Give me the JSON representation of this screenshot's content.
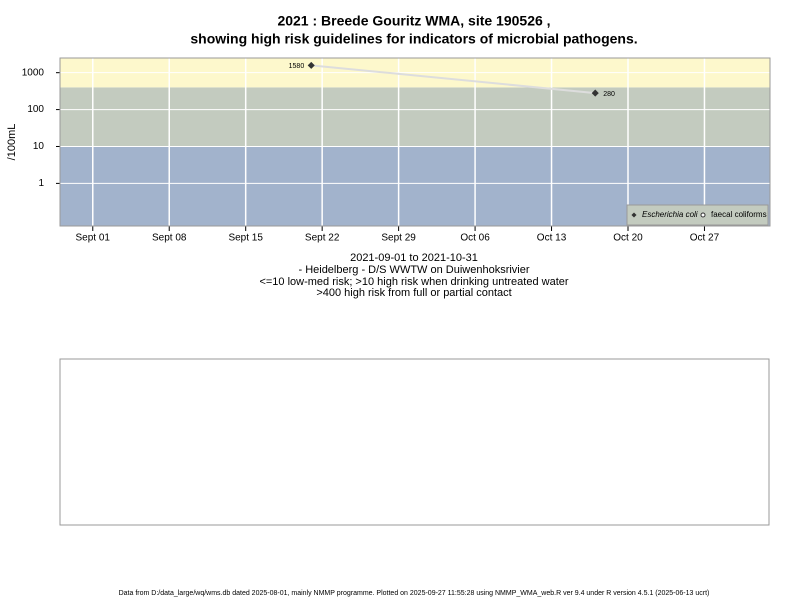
{
  "chart_data": {
    "type": "line",
    "title": [
      "2021 : Breede Gouritz WMA, site 190526 ,",
      "showing high risk guidelines for indicators of microbial pathogens."
    ],
    "y_label": "/100mL",
    "subtitle": [
      "2021-09-01 to 2021-10-31",
      "- Heidelberg - D/S WWTW on Duiwenhoksrivier",
      "<=10 low-med risk; >10 high risk when drinking untreated water",
      ">400 high risk from full or partial contact"
    ],
    "x": [
      "2021-09-21",
      "2021-10-17"
    ],
    "series": [
      {
        "name": "Escherichia coli",
        "color": "#333333",
        "line_color": "#dddddd",
        "values": [
          1580,
          280
        ]
      },
      {
        "name": "faecal coliforms",
        "color": "#333333",
        "values": [
          null,
          null
        ]
      }
    ],
    "xlim": [
      "2021-08-29",
      "2021-11-02"
    ],
    "xticks": [
      {
        "value": "2021-09-01",
        "label": "Sept 01"
      },
      {
        "value": "2021-09-08",
        "label": "Sept 08"
      },
      {
        "value": "2021-09-15",
        "label": "Sept 15"
      },
      {
        "value": "2021-09-22",
        "label": "Sept 22"
      },
      {
        "value": "2021-09-29",
        "label": "Sept 29"
      },
      {
        "value": "2021-10-06",
        "label": "Oct 06"
      },
      {
        "value": "2021-10-13",
        "label": "Oct 13"
      },
      {
        "value": "2021-10-20",
        "label": "Oct 20"
      },
      {
        "value": "2021-10-27",
        "label": "Oct 27"
      }
    ],
    "ylim": [
      0.07,
      2500
    ],
    "yticks": [
      1,
      10,
      100,
      1000
    ],
    "log_y": true,
    "grid": true,
    "risk_thresholds": [
      10,
      400
    ],
    "band_colors": [
      "#a2b3cc",
      "#c3cbbf",
      "#fdf8cc"
    ],
    "legend": "bottom-right"
  },
  "footer": "Data from D:/data_large/wq/wms.db dated 2025-08-01, mainly NMMP programme. Plotted on 2025-09-27 11:55:28 using NMMP_WMA_web.R ver 9.4 under R version 4.5.1 (2025-06-13 ucrt)"
}
